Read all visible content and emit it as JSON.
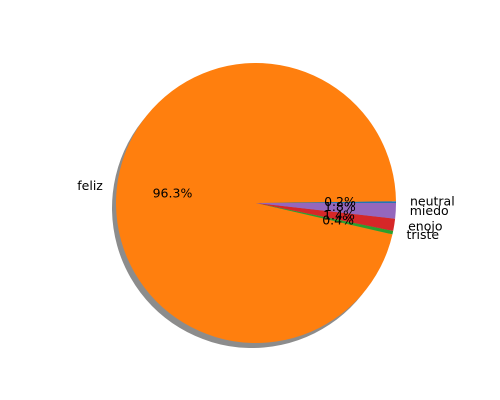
{
  "chart_data": {
    "type": "pie",
    "slices": [
      {
        "label": "neutral",
        "percent": 0.2,
        "pct_text": "0.2%",
        "color": "#1f77b4"
      },
      {
        "label": "feliz",
        "percent": 96.3,
        "pct_text": "96.3%",
        "color": "#ff7f0e"
      },
      {
        "label": "triste",
        "percent": 0.4,
        "pct_text": "0.4%",
        "color": "#2ca02c"
      },
      {
        "label": "enojo",
        "percent": 1.4,
        "pct_text": "1.4%",
        "color": "#d62728"
      },
      {
        "label": "miedo",
        "percent": 1.8,
        "pct_text": "1.8%",
        "color": "#9467bd"
      }
    ],
    "start_angle": 0,
    "direction": "counterclockwise",
    "shadow": true,
    "title": "",
    "legend": false
  }
}
